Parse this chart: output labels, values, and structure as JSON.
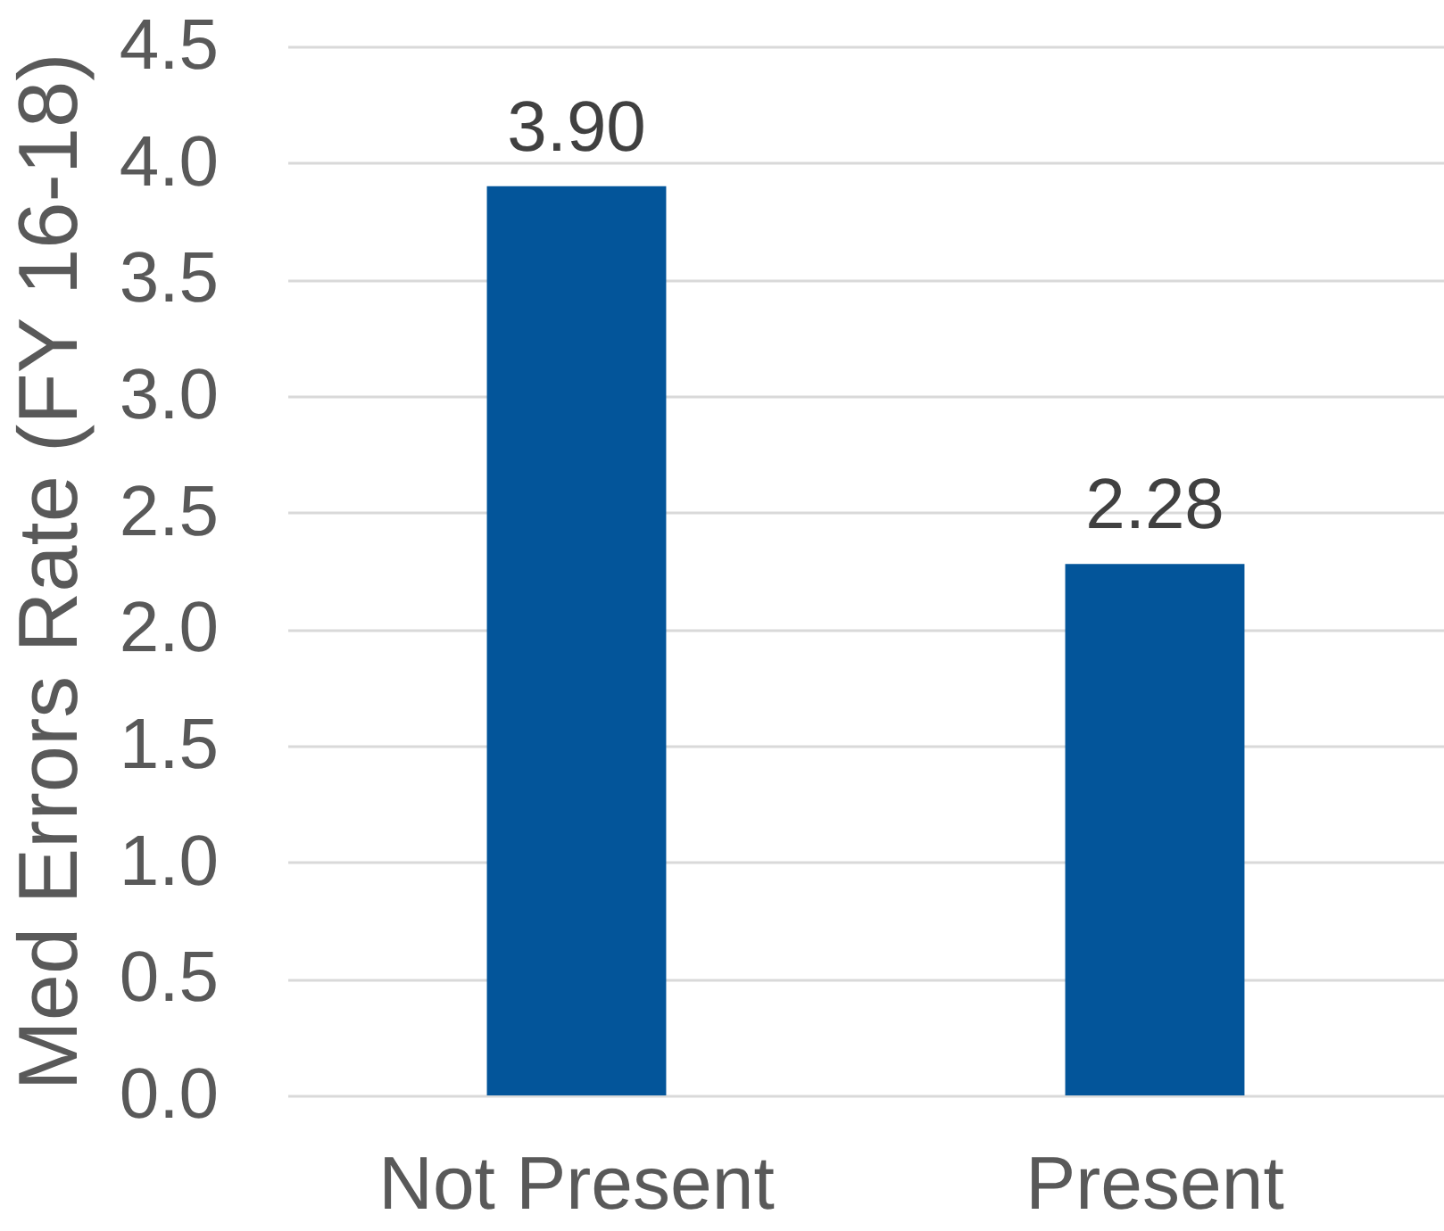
{
  "chart_data": {
    "type": "bar",
    "ylabel": "Med Errors Rate (FY 16-18)",
    "categories": [
      "Not Present",
      "Present"
    ],
    "values": [
      3.9,
      2.28
    ],
    "value_labels": [
      "3.90",
      "2.28"
    ],
    "color": "#03559a",
    "ylim": [
      0,
      4.5
    ],
    "yticks": [
      {
        "value": 0,
        "label": "0.0"
      },
      0.5,
      {
        "value": 1,
        "label": "1.0"
      },
      1.5,
      {
        "value": 2,
        "label": "2.0"
      },
      2.5,
      {
        "value": 3,
        "label": "3.0"
      },
      3.5,
      {
        "value": 4,
        "label": "4.0"
      },
      4.5
    ],
    "grid": "y"
  }
}
